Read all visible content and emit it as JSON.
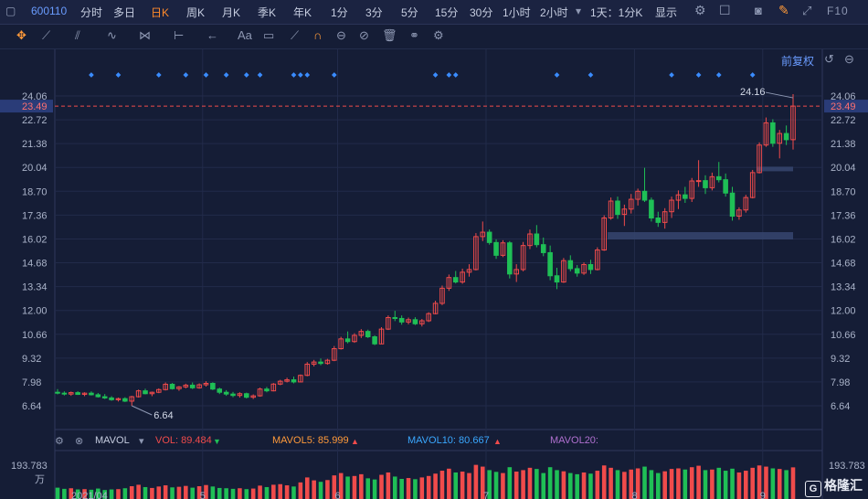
{
  "topbar": {
    "code": "600110",
    "periods": [
      "分时",
      "多日",
      "日K",
      "周K",
      "月K",
      "季K",
      "年K",
      "1分",
      "3分",
      "5分",
      "15分",
      "30分",
      "1小时",
      "2小时"
    ],
    "active_period": "日K",
    "period_dropdown": "1天：1分K",
    "display_label": "显示",
    "fq_short": "F10"
  },
  "toolbar": {
    "adjust_label": "前复权",
    "font_tool": "Aa"
  },
  "price_axis": {
    "ticks": [
      "24.06",
      "22.72",
      "21.38",
      "20.04",
      "18.70",
      "17.36",
      "16.02",
      "14.68",
      "13.34",
      "12.00",
      "10.66",
      "9.32",
      "7.98",
      "6.64"
    ],
    "current_price": "23.49",
    "max_label": "24.16",
    "min_label": "6.64"
  },
  "volume_axis": {
    "top": "193.783",
    "unit": "万"
  },
  "months": [
    "2021/04",
    "5",
    "6",
    "7",
    "8",
    "9"
  ],
  "legend": {
    "name": "MAVOL",
    "vol": "VOL: 89.484",
    "ma5": "MAVOL5: 85.999",
    "ma10": "MAVOL10: 80.667",
    "ma20": "MAVOL20:"
  },
  "brand": "格隆汇",
  "colors": {
    "up": "#f04b4b",
    "down": "#1fbf56",
    "accent": "#ff8a2a",
    "bg": "#151d36"
  },
  "chart_data": {
    "type": "candlestick",
    "ohlc": [
      [
        7.4,
        7.58,
        7.28,
        7.35
      ],
      [
        7.35,
        7.45,
        7.22,
        7.3
      ],
      [
        7.3,
        7.44,
        7.2,
        7.38
      ],
      [
        7.38,
        7.46,
        7.25,
        7.28
      ],
      [
        7.28,
        7.4,
        7.18,
        7.35
      ],
      [
        7.35,
        7.45,
        7.22,
        7.26
      ],
      [
        7.26,
        7.36,
        7.1,
        7.15
      ],
      [
        7.15,
        7.3,
        7.02,
        7.08
      ],
      [
        7.08,
        7.18,
        6.92,
        6.98
      ],
      [
        6.98,
        7.1,
        6.88,
        7.04
      ],
      [
        7.04,
        7.12,
        6.85,
        6.9
      ],
      [
        6.9,
        7.2,
        6.64,
        7.15
      ],
      [
        7.15,
        7.55,
        7.1,
        7.48
      ],
      [
        7.48,
        7.6,
        7.28,
        7.32
      ],
      [
        7.32,
        7.44,
        7.18,
        7.4
      ],
      [
        7.4,
        7.62,
        7.35,
        7.55
      ],
      [
        7.55,
        7.95,
        7.5,
        7.85
      ],
      [
        7.85,
        7.92,
        7.55,
        7.6
      ],
      [
        7.6,
        7.75,
        7.48,
        7.7
      ],
      [
        7.7,
        7.88,
        7.62,
        7.8
      ],
      [
        7.8,
        7.95,
        7.58,
        7.65
      ],
      [
        7.65,
        7.9,
        7.6,
        7.82
      ],
      [
        7.82,
        8.02,
        7.72,
        7.9
      ],
      [
        7.9,
        7.96,
        7.52,
        7.58
      ],
      [
        7.58,
        7.66,
        7.3,
        7.4
      ],
      [
        7.4,
        7.52,
        7.2,
        7.3
      ],
      [
        7.3,
        7.42,
        7.12,
        7.22
      ],
      [
        7.22,
        7.4,
        7.1,
        7.32
      ],
      [
        7.32,
        7.38,
        7.05,
        7.12
      ],
      [
        7.12,
        7.28,
        7.02,
        7.2
      ],
      [
        7.2,
        7.66,
        7.15,
        7.58
      ],
      [
        7.58,
        7.7,
        7.4,
        7.48
      ],
      [
        7.48,
        7.92,
        7.45,
        7.86
      ],
      [
        7.86,
        8.1,
        7.8,
        8.02
      ],
      [
        8.02,
        8.22,
        7.95,
        8.1
      ],
      [
        8.1,
        8.28,
        7.9,
        7.98
      ],
      [
        7.98,
        8.4,
        7.96,
        8.35
      ],
      [
        8.35,
        9.1,
        8.3,
        8.98
      ],
      [
        8.98,
        9.22,
        8.85,
        9.1
      ],
      [
        9.1,
        9.3,
        8.92,
        9.02
      ],
      [
        9.02,
        9.28,
        8.95,
        9.2
      ],
      [
        9.2,
        10.0,
        9.15,
        9.85
      ],
      [
        9.85,
        10.52,
        9.8,
        10.4
      ],
      [
        10.4,
        10.82,
        10.15,
        10.25
      ],
      [
        10.25,
        10.72,
        10.18,
        10.6
      ],
      [
        10.6,
        10.95,
        10.45,
        10.82
      ],
      [
        10.82,
        10.92,
        10.45,
        10.52
      ],
      [
        10.52,
        10.6,
        10.05,
        10.12
      ],
      [
        10.12,
        11.06,
        10.1,
        10.95
      ],
      [
        10.95,
        11.72,
        10.9,
        11.6
      ],
      [
        11.6,
        11.98,
        11.4,
        11.55
      ],
      [
        11.55,
        11.72,
        11.2,
        11.35
      ],
      [
        11.35,
        11.6,
        11.22,
        11.48
      ],
      [
        11.48,
        11.62,
        11.18,
        11.25
      ],
      [
        11.25,
        11.52,
        11.1,
        11.42
      ],
      [
        11.42,
        11.9,
        11.35,
        11.82
      ],
      [
        11.82,
        12.55,
        11.78,
        12.4
      ],
      [
        12.4,
        13.4,
        12.3,
        13.25
      ],
      [
        13.25,
        14.02,
        13.1,
        13.85
      ],
      [
        13.85,
        14.22,
        13.52,
        13.6
      ],
      [
        13.6,
        14.35,
        13.5,
        14.15
      ],
      [
        14.15,
        14.6,
        13.9,
        14.3
      ],
      [
        14.3,
        16.35,
        14.25,
        16.15
      ],
      [
        16.15,
        17.0,
        15.9,
        16.4
      ],
      [
        16.4,
        16.55,
        15.7,
        15.82
      ],
      [
        15.82,
        16.0,
        14.9,
        15.1
      ],
      [
        15.1,
        15.95,
        15.0,
        15.8
      ],
      [
        15.8,
        15.9,
        13.8,
        14.05
      ],
      [
        14.05,
        14.6,
        13.6,
        14.3
      ],
      [
        14.3,
        15.85,
        14.2,
        15.65
      ],
      [
        15.65,
        16.55,
        15.45,
        16.3
      ],
      [
        16.3,
        16.8,
        15.55,
        15.7
      ],
      [
        15.7,
        16.1,
        15.05,
        15.25
      ],
      [
        15.25,
        15.65,
        13.7,
        13.95
      ],
      [
        13.95,
        14.4,
        13.2,
        13.6
      ],
      [
        13.6,
        14.95,
        13.55,
        14.8
      ],
      [
        14.8,
        15.1,
        14.2,
        14.35
      ],
      [
        14.35,
        14.55,
        13.9,
        14.1
      ],
      [
        14.1,
        14.7,
        14.0,
        14.58
      ],
      [
        14.58,
        14.85,
        14.05,
        14.3
      ],
      [
        14.3,
        15.55,
        14.25,
        15.4
      ],
      [
        15.4,
        17.35,
        15.35,
        17.2
      ],
      [
        17.2,
        18.35,
        17.1,
        18.15
      ],
      [
        18.15,
        18.4,
        17.15,
        17.4
      ],
      [
        17.4,
        17.95,
        16.75,
        17.7
      ],
      [
        17.7,
        18.55,
        17.45,
        18.25
      ],
      [
        18.25,
        18.85,
        17.9,
        18.7
      ],
      [
        18.7,
        20.02,
        18.1,
        18.2
      ],
      [
        18.2,
        18.35,
        17.0,
        17.2
      ],
      [
        17.2,
        17.55,
        16.7,
        16.95
      ],
      [
        16.95,
        17.75,
        16.6,
        17.55
      ],
      [
        17.55,
        18.4,
        17.2,
        18.2
      ],
      [
        18.2,
        18.75,
        17.7,
        18.5
      ],
      [
        18.5,
        18.95,
        18.05,
        18.3
      ],
      [
        18.3,
        19.45,
        18.1,
        19.28
      ],
      [
        19.28,
        20.45,
        18.95,
        19.3
      ],
      [
        19.3,
        19.6,
        18.55,
        18.9
      ],
      [
        18.9,
        19.75,
        18.75,
        19.52
      ],
      [
        19.52,
        20.35,
        19.2,
        19.35
      ],
      [
        19.35,
        19.7,
        18.4,
        18.6
      ],
      [
        18.6,
        18.95,
        17.05,
        17.3
      ],
      [
        17.3,
        17.8,
        17.1,
        17.65
      ],
      [
        17.65,
        18.5,
        17.5,
        18.35
      ],
      [
        18.35,
        19.9,
        18.3,
        19.75
      ],
      [
        19.75,
        21.45,
        19.7,
        21.3
      ],
      [
        21.3,
        22.85,
        21.2,
        22.55
      ],
      [
        22.55,
        22.75,
        21.2,
        21.4
      ],
      [
        21.4,
        22.15,
        20.55,
        21.95
      ],
      [
        21.95,
        22.4,
        21.3,
        21.6
      ],
      [
        21.6,
        24.16,
        21.05,
        23.49
      ]
    ],
    "volume": [
      20,
      16,
      18,
      14,
      15,
      13,
      17,
      12,
      14,
      15,
      18,
      25,
      30,
      22,
      19,
      24,
      28,
      21,
      23,
      26,
      20,
      25,
      29,
      24,
      19,
      18,
      16,
      18,
      15,
      17,
      27,
      22,
      30,
      32,
      28,
      24,
      38,
      55,
      45,
      40,
      46,
      62,
      70,
      58,
      60,
      66,
      52,
      48,
      64,
      72,
      58,
      50,
      53,
      49,
      55,
      60,
      68,
      78,
      85,
      72,
      75,
      70,
      98,
      92,
      80,
      74,
      70,
      90,
      75,
      80,
      88,
      84,
      70,
      90,
      80,
      76,
      70,
      66,
      72,
      68,
      78,
      96,
      88,
      80,
      74,
      82,
      86,
      92,
      80,
      70,
      76,
      84,
      86,
      82,
      90,
      95,
      80,
      82,
      88,
      78,
      85,
      72,
      78,
      88,
      96,
      92,
      86,
      84,
      80,
      89.484
    ],
    "ylim": [
      6.64,
      24.06
    ]
  }
}
